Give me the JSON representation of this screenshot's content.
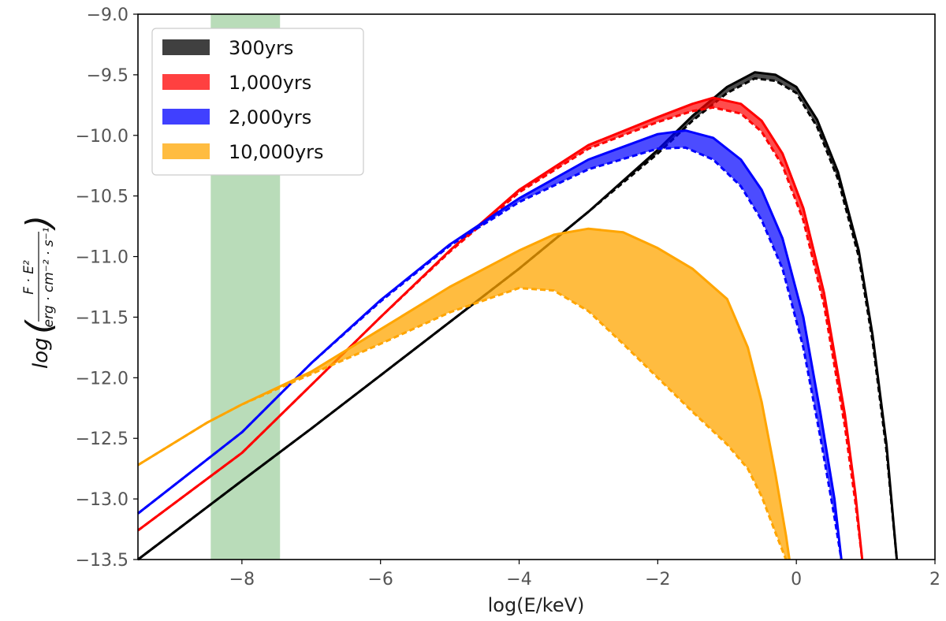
{
  "chart_data": {
    "type": "area",
    "xlabel": "log(E/keV)",
    "ylabel": {
      "prefix": "log",
      "numerator": "F · E²",
      "denominator": "erg · cm⁻² · s⁻¹"
    },
    "xlim": [
      -9.5,
      2
    ],
    "ylim": [
      -13.5,
      -9.0
    ],
    "xticks": [
      -8,
      -6,
      -4,
      -2,
      0,
      2
    ],
    "xtick_labels": [
      "−8",
      "−6",
      "−4",
      "−2",
      "0",
      "2"
    ],
    "yticks": [
      -9.0,
      -9.5,
      -10.0,
      -10.5,
      -11.0,
      -11.5,
      -12.0,
      -12.5,
      -13.0,
      -13.5
    ],
    "ytick_labels": [
      "−9.0",
      "−9.5",
      "−10.0",
      "−10.5",
      "−11.0",
      "−11.5",
      "−12.0",
      "−12.5",
      "−13.0",
      "−13.5"
    ],
    "legend_position": "top-left",
    "shaded_band": {
      "x_range": [
        -8.45,
        -7.45
      ],
      "color": "#b9dcb9"
    },
    "series": [
      {
        "name": "300yrs",
        "color": "#000000",
        "upper": [
          [
            -9.5,
            -13.5
          ],
          [
            -8,
            -12.85
          ],
          [
            -7,
            -12.42
          ],
          [
            -6,
            -11.98
          ],
          [
            -5,
            -11.54
          ],
          [
            -4,
            -11.1
          ],
          [
            -3,
            -10.63
          ],
          [
            -2,
            -10.12
          ],
          [
            -1.5,
            -9.84
          ],
          [
            -1,
            -9.6
          ],
          [
            -0.6,
            -9.48
          ],
          [
            -0.3,
            -9.5
          ],
          [
            0,
            -9.6
          ],
          [
            0.3,
            -9.87
          ],
          [
            0.6,
            -10.3
          ],
          [
            0.9,
            -10.95
          ],
          [
            1.1,
            -11.65
          ],
          [
            1.3,
            -12.55
          ],
          [
            1.45,
            -13.5
          ]
        ],
        "lower": [
          [
            -9.5,
            -13.5
          ],
          [
            -8,
            -12.85
          ],
          [
            -7,
            -12.42
          ],
          [
            -6,
            -11.98
          ],
          [
            -5,
            -11.54
          ],
          [
            -4,
            -11.1
          ],
          [
            -3,
            -10.63
          ],
          [
            -2,
            -10.15
          ],
          [
            -1.5,
            -9.88
          ],
          [
            -1,
            -9.65
          ],
          [
            -0.6,
            -9.53
          ],
          [
            -0.3,
            -9.55
          ],
          [
            0,
            -9.65
          ],
          [
            0.3,
            -9.93
          ],
          [
            0.6,
            -10.36
          ],
          [
            0.9,
            -11.0
          ],
          [
            1.1,
            -11.7
          ],
          [
            1.3,
            -12.6
          ],
          [
            1.45,
            -13.5
          ]
        ]
      },
      {
        "name": "1,000yrs",
        "color": "#ff0000",
        "upper": [
          [
            -9.5,
            -13.26
          ],
          [
            -8,
            -12.62
          ],
          [
            -7,
            -12.06
          ],
          [
            -6,
            -11.5
          ],
          [
            -5,
            -10.95
          ],
          [
            -4,
            -10.45
          ],
          [
            -3,
            -10.08
          ],
          [
            -2,
            -9.85
          ],
          [
            -1.5,
            -9.74
          ],
          [
            -1.2,
            -9.69
          ],
          [
            -0.8,
            -9.74
          ],
          [
            -0.5,
            -9.88
          ],
          [
            -0.2,
            -10.15
          ],
          [
            0.1,
            -10.6
          ],
          [
            0.4,
            -11.3
          ],
          [
            0.7,
            -12.3
          ],
          [
            0.85,
            -12.95
          ],
          [
            0.95,
            -13.5
          ]
        ],
        "lower": [
          [
            -9.5,
            -13.26
          ],
          [
            -8,
            -12.62
          ],
          [
            -7,
            -12.06
          ],
          [
            -6,
            -11.5
          ],
          [
            -5,
            -10.96
          ],
          [
            -4,
            -10.47
          ],
          [
            -3,
            -10.11
          ],
          [
            -2,
            -9.89
          ],
          [
            -1.5,
            -9.8
          ],
          [
            -1.2,
            -9.77
          ],
          [
            -0.8,
            -9.82
          ],
          [
            -0.5,
            -9.97
          ],
          [
            -0.2,
            -10.25
          ],
          [
            0.1,
            -10.7
          ],
          [
            0.4,
            -11.4
          ],
          [
            0.7,
            -12.4
          ],
          [
            0.85,
            -13.02
          ],
          [
            0.95,
            -13.5
          ]
        ]
      },
      {
        "name": "2,000yrs",
        "color": "#0000ff",
        "upper": [
          [
            -9.5,
            -13.12
          ],
          [
            -8,
            -12.45
          ],
          [
            -7,
            -11.88
          ],
          [
            -6,
            -11.36
          ],
          [
            -5,
            -10.9
          ],
          [
            -4,
            -10.52
          ],
          [
            -3,
            -10.2
          ],
          [
            -2,
            -9.99
          ],
          [
            -1.6,
            -9.96
          ],
          [
            -1.2,
            -10.02
          ],
          [
            -0.8,
            -10.2
          ],
          [
            -0.5,
            -10.45
          ],
          [
            -0.2,
            -10.85
          ],
          [
            0.1,
            -11.5
          ],
          [
            0.35,
            -12.3
          ],
          [
            0.55,
            -13.0
          ],
          [
            0.65,
            -13.5
          ]
        ],
        "lower": [
          [
            -9.5,
            -13.12
          ],
          [
            -8,
            -12.45
          ],
          [
            -7,
            -11.88
          ],
          [
            -6,
            -11.37
          ],
          [
            -5,
            -10.91
          ],
          [
            -4,
            -10.55
          ],
          [
            -3,
            -10.28
          ],
          [
            -2,
            -10.11
          ],
          [
            -1.6,
            -10.1
          ],
          [
            -1.2,
            -10.2
          ],
          [
            -0.8,
            -10.42
          ],
          [
            -0.5,
            -10.7
          ],
          [
            -0.2,
            -11.1
          ],
          [
            0.1,
            -11.75
          ],
          [
            0.35,
            -12.5
          ],
          [
            0.55,
            -13.15
          ],
          [
            0.65,
            -13.5
          ]
        ]
      },
      {
        "name": "10,000yrs",
        "color": "#ffa500",
        "upper": [
          [
            -9.5,
            -12.72
          ],
          [
            -8.5,
            -12.37
          ],
          [
            -8,
            -12.22
          ],
          [
            -7,
            -11.95
          ],
          [
            -6,
            -11.6
          ],
          [
            -5,
            -11.25
          ],
          [
            -4,
            -10.95
          ],
          [
            -3.5,
            -10.82
          ],
          [
            -3,
            -10.77
          ],
          [
            -2.5,
            -10.8
          ],
          [
            -2,
            -10.93
          ],
          [
            -1.5,
            -11.1
          ],
          [
            -1,
            -11.35
          ],
          [
            -0.7,
            -11.75
          ],
          [
            -0.5,
            -12.2
          ],
          [
            -0.3,
            -12.8
          ],
          [
            -0.15,
            -13.3
          ],
          [
            -0.1,
            -13.5
          ]
        ],
        "lower": [
          [
            -9.5,
            -12.72
          ],
          [
            -8.5,
            -12.37
          ],
          [
            -8,
            -12.22
          ],
          [
            -7,
            -11.97
          ],
          [
            -6,
            -11.72
          ],
          [
            -5,
            -11.46
          ],
          [
            -4,
            -11.26
          ],
          [
            -3.5,
            -11.28
          ],
          [
            -3,
            -11.45
          ],
          [
            -2.5,
            -11.72
          ],
          [
            -2,
            -12.0
          ],
          [
            -1.5,
            -12.28
          ],
          [
            -1,
            -12.55
          ],
          [
            -0.7,
            -12.75
          ],
          [
            -0.5,
            -12.98
          ],
          [
            -0.3,
            -13.28
          ],
          [
            -0.15,
            -13.5
          ]
        ]
      }
    ]
  }
}
